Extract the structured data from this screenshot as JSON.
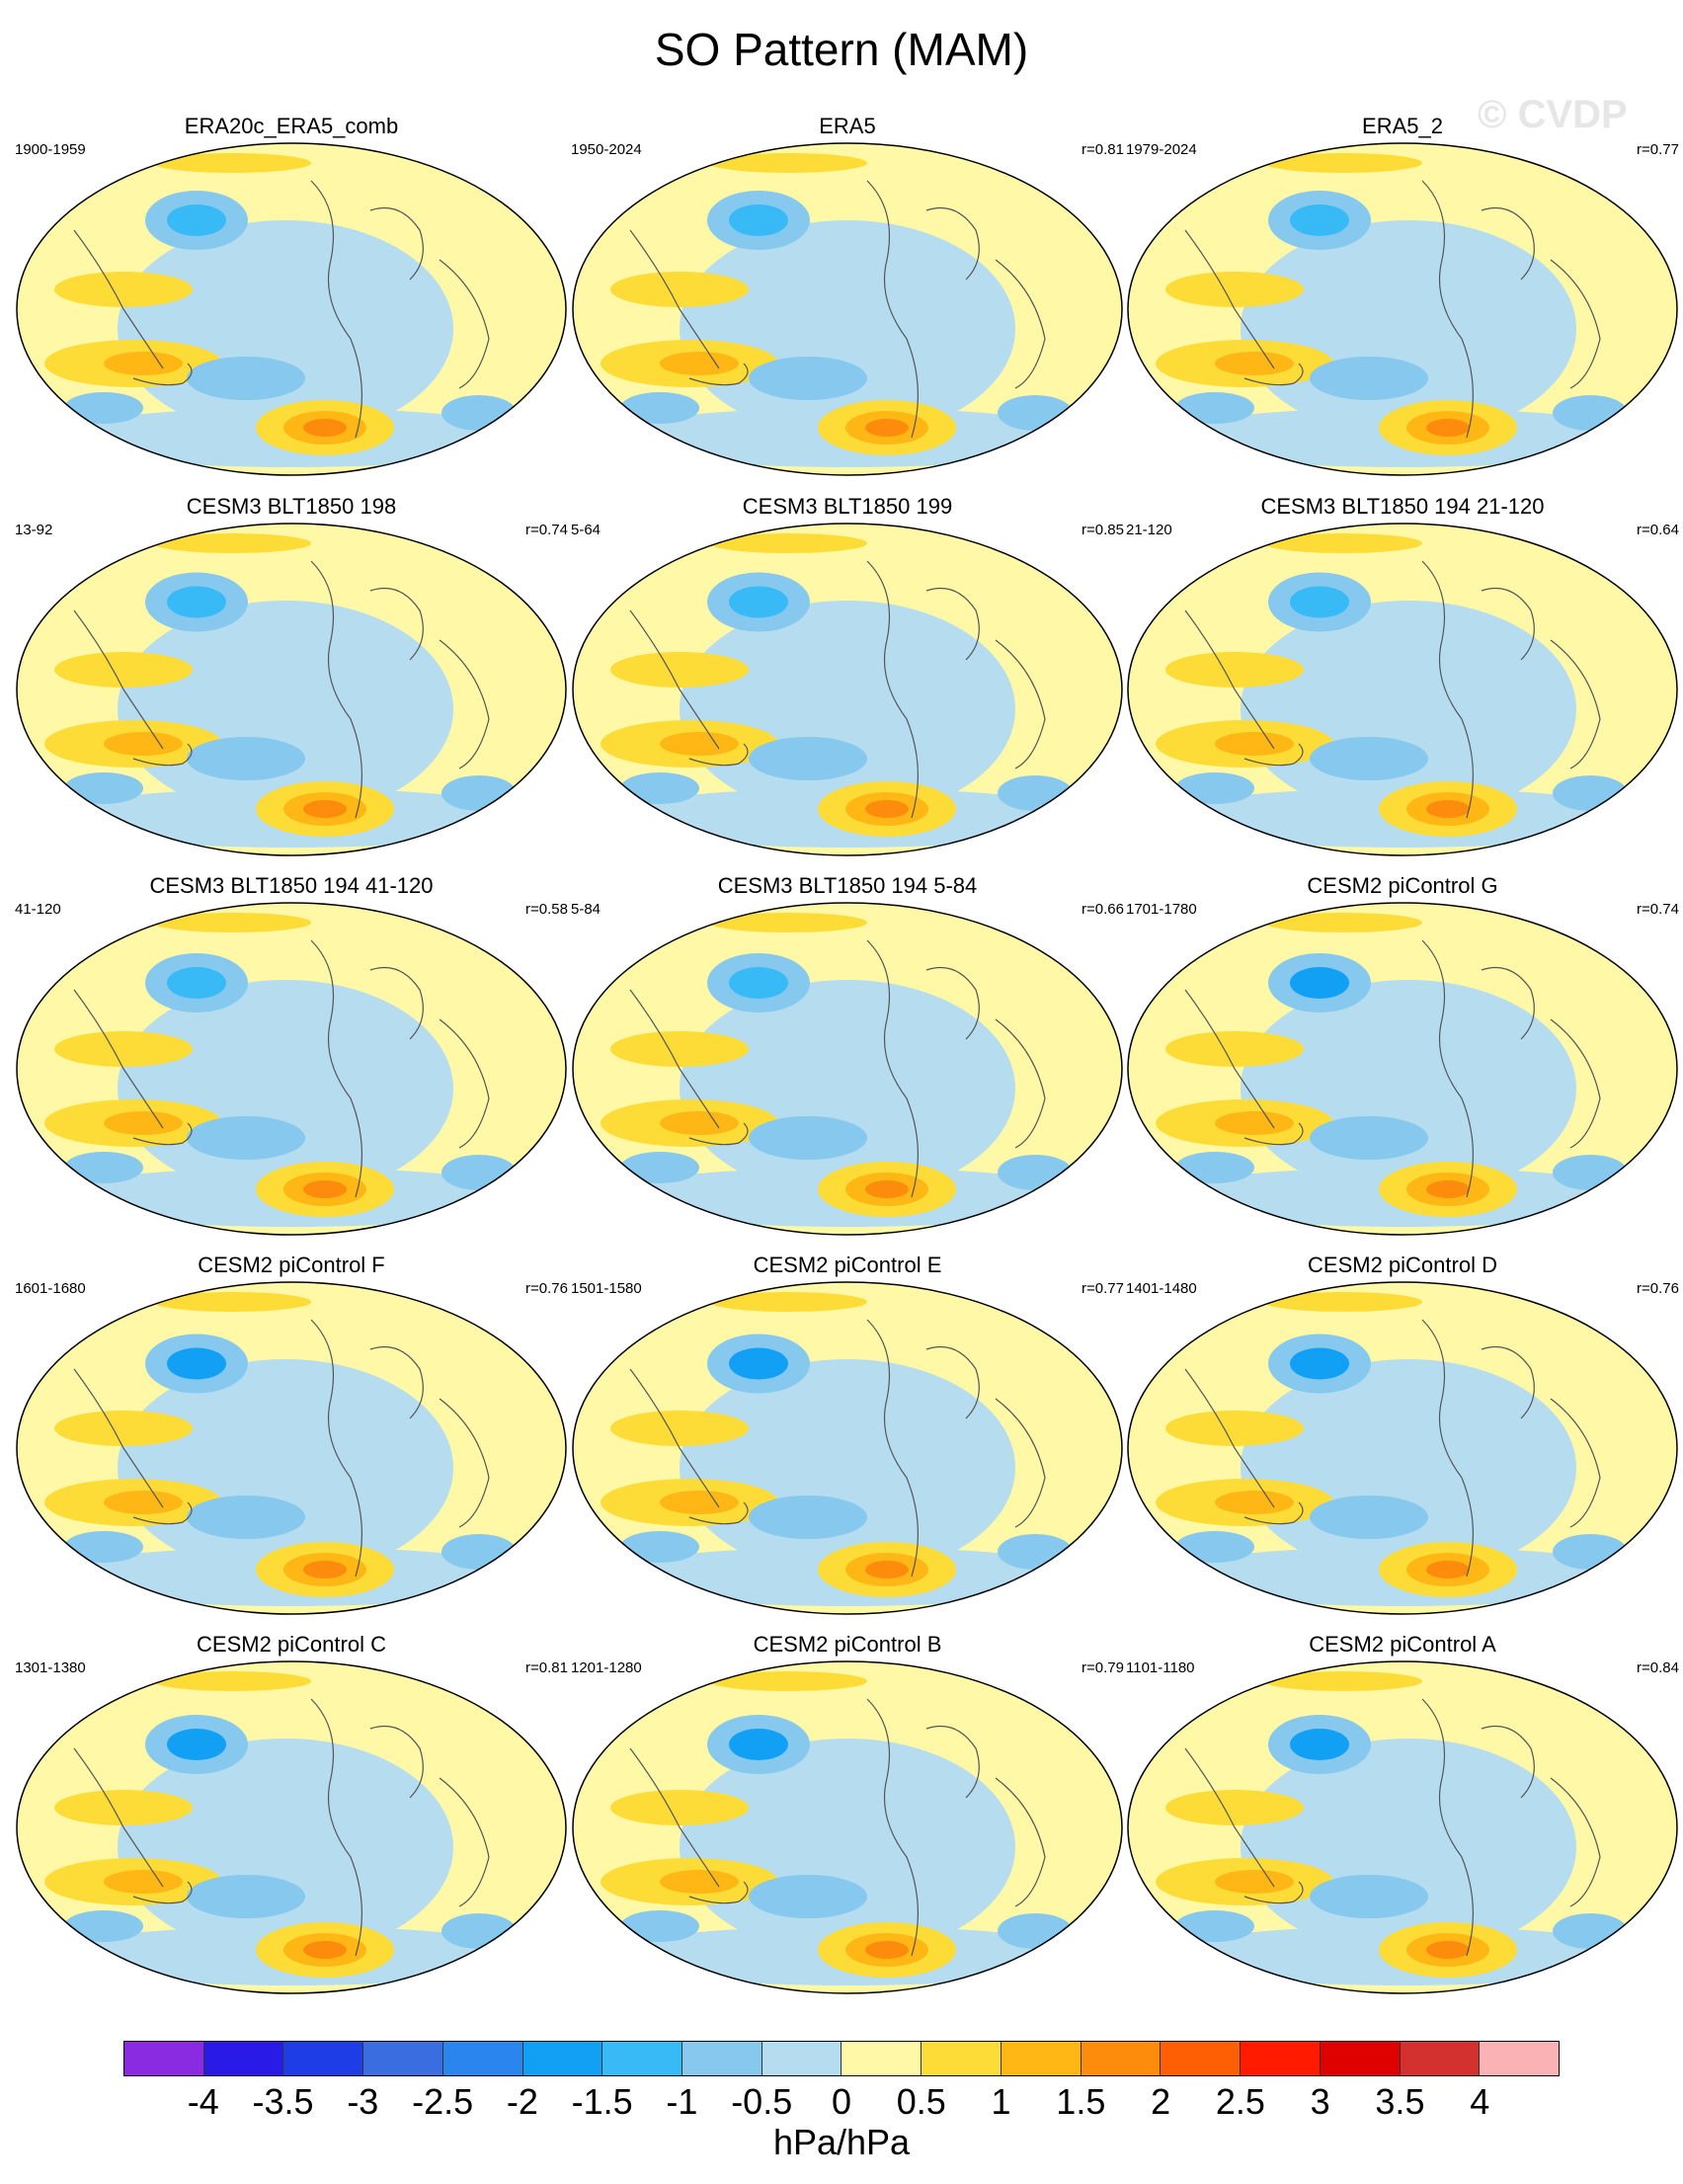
{
  "title": "SO Pattern (MAM)",
  "watermark": "© CVDP",
  "units": "hPa/hPa",
  "colorbar": {
    "labels": [
      "-4",
      "-3.5",
      "-3",
      "-2.5",
      "-2",
      "-1.5",
      "-1",
      "-0.5",
      "0",
      "0.5",
      "1",
      "1.5",
      "2",
      "2.5",
      "3",
      "3.5",
      "4"
    ],
    "colors": [
      "#8a2be2",
      "#2a1ae8",
      "#1f3de6",
      "#3a6ee0",
      "#2a86ee",
      "#12a0f4",
      "#38baf7",
      "#86c8ee",
      "#b6dcf0",
      "#fff8a6",
      "#fedc38",
      "#feb714",
      "#fe8c0c",
      "#fe5e04",
      "#ff1a00",
      "#df0000",
      "#d33030",
      "#fbb2b4"
    ]
  },
  "panels": [
    {
      "title": "ERA20c_ERA5_comb",
      "period": "1900-1959",
      "r": ""
    },
    {
      "title": "ERA5",
      "period": "1950-2024",
      "r": "r=0.81"
    },
    {
      "title": "ERA5_2",
      "period": "1979-2024",
      "r": "r=0.77"
    },
    {
      "title": "CESM3 BLT1850 198",
      "period": "13-92",
      "r": "r=0.74"
    },
    {
      "title": "CESM3 BLT1850 199",
      "period": "5-64",
      "r": "r=0.85"
    },
    {
      "title": "CESM3 BLT1850 194 21-120",
      "period": "21-120",
      "r": "r=0.64"
    },
    {
      "title": "CESM3 BLT1850 194 41-120",
      "period": "41-120",
      "r": "r=0.58"
    },
    {
      "title": "CESM3 BLT1850 194 5-84",
      "period": "5-84",
      "r": "r=0.66"
    },
    {
      "title": "CESM2 piControl G",
      "period": "1701-1780",
      "r": "r=0.74"
    },
    {
      "title": "CESM2 piControl F",
      "period": "1601-1680",
      "r": "r=0.76"
    },
    {
      "title": "CESM2 piControl E",
      "period": "1501-1580",
      "r": "r=0.77"
    },
    {
      "title": "CESM2 piControl D",
      "period": "1401-1480",
      "r": "r=0.76"
    },
    {
      "title": "CESM2 piControl C",
      "period": "1301-1380",
      "r": "r=0.81"
    },
    {
      "title": "CESM2 piControl B",
      "period": "1201-1280",
      "r": "r=0.79"
    },
    {
      "title": "CESM2 piControl A",
      "period": "1101-1180",
      "r": "r=0.84"
    }
  ]
}
